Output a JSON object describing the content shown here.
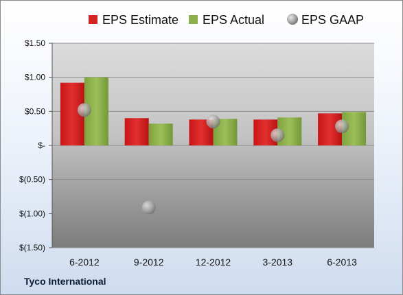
{
  "footer": {
    "company": "Tyco International"
  },
  "chart_data": {
    "type": "bar",
    "categories": [
      "6-2012",
      "9-2012",
      "12-2012",
      "3-2013",
      "6-2013"
    ],
    "series": [
      {
        "name": "EPS Estimate",
        "kind": "bar",
        "color": "#d62424",
        "values": [
          0.92,
          0.4,
          0.38,
          0.38,
          0.47
        ]
      },
      {
        "name": "EPS Actual",
        "kind": "bar",
        "color": "#8cb04a",
        "values": [
          1.0,
          0.32,
          0.39,
          0.41,
          0.49
        ]
      },
      {
        "name": "EPS GAAP",
        "kind": "marker",
        "color": "#9a9a9a",
        "values": [
          0.52,
          -0.91,
          0.35,
          0.15,
          0.28
        ]
      }
    ],
    "ylim": [
      -1.5,
      1.5
    ],
    "yticks": [
      1.5,
      1.0,
      0.5,
      0,
      -0.5,
      -1.0,
      -1.5
    ],
    "ytick_labels": [
      "$1.50",
      "$1.00",
      "$0.50",
      "$-",
      "$(0.50)",
      "$(1.00)",
      "$(1.50)"
    ],
    "grid": true,
    "legend_position": "top"
  }
}
